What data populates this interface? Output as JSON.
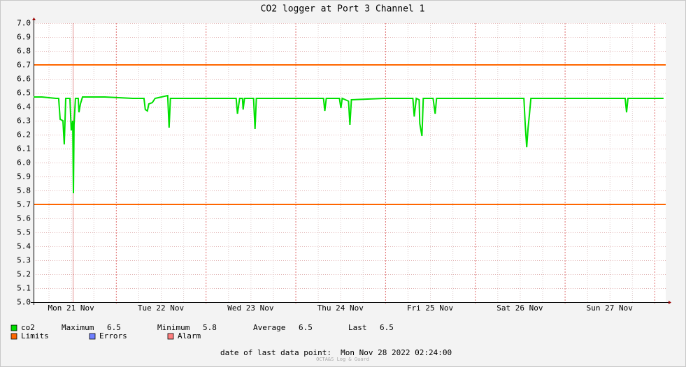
{
  "chart_data": {
    "type": "line",
    "title": "CO2 logger at Port 3 Channel 1",
    "xlim": [
      21.082,
      28.125
    ],
    "xticks": [
      {
        "value": 21.5,
        "label": "Mon 21 Nov"
      },
      {
        "value": 22.5,
        "label": "Tue 22 Nov"
      },
      {
        "value": 23.5,
        "label": "Wed 23 Nov"
      },
      {
        "value": 24.5,
        "label": "Thu 24 Nov"
      },
      {
        "value": 25.5,
        "label": "Fri 25 Nov"
      },
      {
        "value": 26.5,
        "label": "Sat 26 Nov"
      },
      {
        "value": 27.5,
        "label": "Sun 27 Nov"
      }
    ],
    "ylim": [
      5,
      7
    ],
    "yticks": [
      {
        "value": 5,
        "label": "5.0"
      },
      5.1,
      5.2,
      5.3,
      5.4,
      5.5,
      5.6,
      5.7,
      5.8,
      5.9,
      {
        "value": 6,
        "label": "6.0"
      },
      6.1,
      6.2,
      6.3,
      6.4,
      6.5,
      6.6,
      6.7,
      6.8,
      6.9,
      {
        "value": 7,
        "label": "7.0"
      }
    ],
    "grid": true,
    "series": [
      {
        "name": "co2",
        "color": "#00e000",
        "x": [
          21.082,
          21.175,
          21.331,
          21.362,
          21.378,
          21.409,
          21.424,
          21.44,
          21.487,
          21.502,
          21.518,
          21.526,
          21.533,
          21.549,
          21.58,
          21.588,
          21.604,
          21.627,
          21.876,
          22.187,
          22.312,
          22.327,
          22.35,
          22.366,
          22.405,
          22.436,
          22.576,
          22.592,
          22.607,
          22.965,
          23.339,
          23.354,
          23.378,
          23.409,
          23.417,
          23.432,
          23.533,
          23.549,
          23.564,
          23.977,
          24.312,
          24.327,
          24.343,
          24.49,
          24.506,
          24.521,
          24.591,
          24.607,
          24.623,
          24.988,
          25.308,
          25.323,
          25.346,
          25.378,
          25.385,
          25.409,
          25.424,
          25.533,
          25.556,
          25.572,
          26.156,
          26.545,
          26.56,
          26.576,
          26.592,
          26.607,
          26.623,
          26.934,
          27.401,
          27.673,
          27.689,
          27.704,
          28.101
        ],
        "values": [
          6.47,
          6.47,
          6.46,
          6.46,
          6.31,
          6.3,
          6.13,
          6.46,
          6.46,
          6.23,
          6.3,
          5.78,
          6.27,
          6.46,
          6.46,
          6.36,
          6.42,
          6.47,
          6.47,
          6.46,
          6.46,
          6.38,
          6.37,
          6.42,
          6.43,
          6.46,
          6.48,
          6.25,
          6.46,
          6.46,
          6.46,
          6.35,
          6.46,
          6.46,
          6.38,
          6.46,
          6.46,
          6.24,
          6.46,
          6.46,
          6.46,
          6.37,
          6.46,
          6.46,
          6.39,
          6.46,
          6.44,
          6.27,
          6.45,
          6.46,
          6.46,
          6.33,
          6.46,
          6.45,
          6.28,
          6.19,
          6.46,
          6.46,
          6.35,
          6.46,
          6.46,
          6.46,
          6.27,
          6.11,
          6.25,
          6.35,
          6.46,
          6.46,
          6.46,
          6.46,
          6.36,
          6.46,
          6.46
        ],
        "stats": [
          {
            "label": "Maximum",
            "value": 6.5
          },
          {
            "label": "Minimum",
            "value": 5.8
          },
          {
            "label": "Average",
            "value": 6.5
          },
          {
            "label": "Last",
            "value": 6.5
          }
        ]
      }
    ],
    "limits": {
      "name": "Limits",
      "color": "#ff6600",
      "values": [
        6.7,
        5.7
      ]
    },
    "legend_only": [
      {
        "name": "Errors",
        "color": "#6f7fff"
      },
      {
        "name": "Alarm",
        "color": "#ff7f7f"
      }
    ],
    "footer": "date of last data point:  Mon Nov 28 2022 02:24:00",
    "watermark": "OCTA&S Log & Guard"
  }
}
